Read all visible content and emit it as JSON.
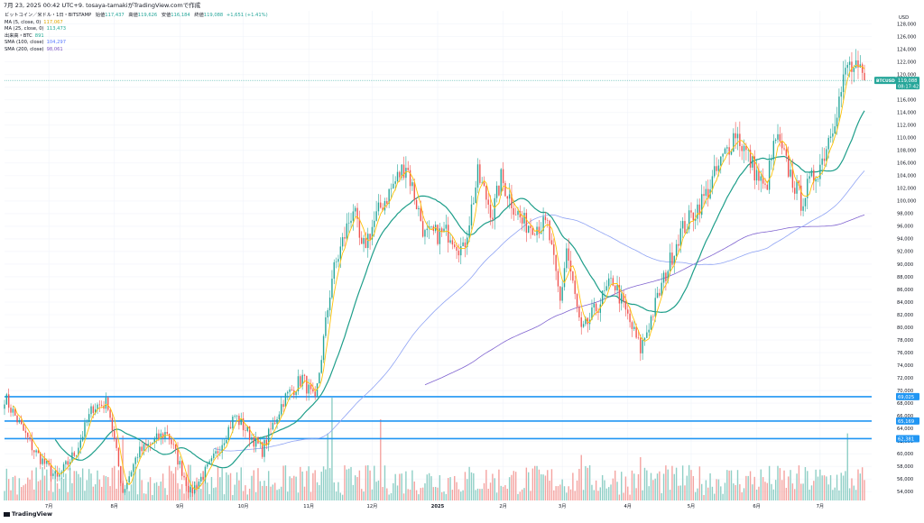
{
  "header": {
    "title": "7月 23, 2025 00:42 UTC+9. tosaya-tamakiがTradingView.comで作成"
  },
  "legend": {
    "symbol": "ビットコイン／米ドル・1日・BITSTAMP",
    "open_label": "始値",
    "open": "117,437",
    "high_label": "高値",
    "high": "119,626",
    "low_label": "安値",
    "low": "116,184",
    "close_label": "終値",
    "close": "119,088",
    "change": "+1,651 (+1.41%)",
    "indicators": [
      {
        "label": "MA (5, close, 0)",
        "value": "117,067",
        "color": "#ffc107"
      },
      {
        "label": "MA (25, close, 0)",
        "value": "113,473",
        "color": "#22ab94"
      },
      {
        "label": "出来高・BTC",
        "value": "891",
        "color": "#22ab94"
      },
      {
        "label": "SMA (100, close)",
        "value": "104,297",
        "color": "#5b7bff"
      },
      {
        "label": "SMA (200, close)",
        "value": "98,061",
        "color": "#7e57c2"
      }
    ]
  },
  "footer": {
    "logo": "TradingView"
  },
  "colors": {
    "up": "#26a69a",
    "down": "#ef5350",
    "up_vol": "#8fcfc6",
    "down_vol": "#f4a3a0",
    "hline": "#2196f3",
    "ma5": "#ffc107",
    "ma25": "#1e9e8a",
    "sma100": "#90a4f4",
    "sma200": "#8064d0",
    "price_badge": "#26a69a",
    "last_line": "#26a69a"
  },
  "chart_data": {
    "type": "candlestick",
    "title": "ビットコイン／米ドル・1日・BITSTAMP",
    "currency_label": "USD",
    "y_range": [
      52600,
      130100
    ],
    "y_ticks": [
      "54,000",
      "56,000",
      "58,000",
      "60,000",
      "62,000",
      "64,000",
      "66,000",
      "68,000",
      "70,000",
      "72,000",
      "74,000",
      "76,000",
      "78,000",
      "80,000",
      "82,000",
      "84,000",
      "86,000",
      "88,000",
      "90,000",
      "92,000",
      "94,000",
      "96,000",
      "98,000",
      "100,000",
      "102,000",
      "104,000",
      "106,000",
      "108,000",
      "110,000",
      "112,000",
      "114,000",
      "116,000",
      "118,000",
      "120,000",
      "122,000",
      "124,000",
      "126,000",
      "128,000"
    ],
    "x_labels": [
      {
        "label": "7月",
        "date": "2024-07-01"
      },
      {
        "label": "8月",
        "date": "2024-08-01"
      },
      {
        "label": "9月",
        "date": "2024-09-01"
      },
      {
        "label": "10月",
        "date": "2024-10-01"
      },
      {
        "label": "11月",
        "date": "2024-11-01"
      },
      {
        "label": "12月",
        "date": "2024-12-01"
      },
      {
        "label": "2025",
        "date": "2025-01-01"
      },
      {
        "label": "2月",
        "date": "2025-02-01"
      },
      {
        "label": "3月",
        "date": "2025-03-01"
      },
      {
        "label": "4月",
        "date": "2025-04-01"
      },
      {
        "label": "5月",
        "date": "2025-05-01"
      },
      {
        "label": "6月",
        "date": "2025-06-01"
      },
      {
        "label": "7月",
        "date": "2025-07-01"
      }
    ],
    "horizontal_levels": [
      {
        "value": 69025,
        "label": "69,025"
      },
      {
        "value": 65169,
        "label": "65,169"
      },
      {
        "value": 62381,
        "label": "62,381"
      }
    ],
    "last_price": {
      "value": 119088,
      "label": "119,088",
      "symbol": "BTCUSD",
      "countdown": "08:17:42"
    },
    "anchors": [
      [
        "2024-06-10",
        69000
      ],
      [
        "2024-06-24",
        60500
      ],
      [
        "2024-07-05",
        56000
      ],
      [
        "2024-07-14",
        60500
      ],
      [
        "2024-07-22",
        67500
      ],
      [
        "2024-07-29",
        68000
      ],
      [
        "2024-08-05",
        54000
      ],
      [
        "2024-08-12",
        60000
      ],
      [
        "2024-08-26",
        63500
      ],
      [
        "2024-09-06",
        53800
      ],
      [
        "2024-09-16",
        58500
      ],
      [
        "2024-09-27",
        66000
      ],
      [
        "2024-10-10",
        60500
      ],
      [
        "2024-10-20",
        68500
      ],
      [
        "2024-10-29",
        72000
      ],
      [
        "2024-11-04",
        68000
      ],
      [
        "2024-11-12",
        88000
      ],
      [
        "2024-11-22",
        99000
      ],
      [
        "2024-11-26",
        92000
      ],
      [
        "2024-12-05",
        99000
      ],
      [
        "2024-12-17",
        106000
      ],
      [
        "2024-12-26",
        94500
      ],
      [
        "2025-01-07",
        95000
      ],
      [
        "2025-01-13",
        92000
      ],
      [
        "2025-01-20",
        104000
      ],
      [
        "2025-01-27",
        98000
      ],
      [
        "2025-01-31",
        103500
      ],
      [
        "2025-02-10",
        96500
      ],
      [
        "2025-02-22",
        96000
      ],
      [
        "2025-02-28",
        84000
      ],
      [
        "2025-03-03",
        92500
      ],
      [
        "2025-03-10",
        79000
      ],
      [
        "2025-03-25",
        87500
      ],
      [
        "2025-04-07",
        76500
      ],
      [
        "2025-04-15",
        84500
      ],
      [
        "2025-04-25",
        94500
      ],
      [
        "2025-05-08",
        101000
      ],
      [
        "2025-05-22",
        111000
      ],
      [
        "2025-06-05",
        101500
      ],
      [
        "2025-06-10",
        110000
      ],
      [
        "2025-06-22",
        100000
      ],
      [
        "2025-07-02",
        106500
      ],
      [
        "2025-07-10",
        116000
      ],
      [
        "2025-07-14",
        121500
      ],
      [
        "2025-07-22",
        119088
      ]
    ],
    "volume_spikes": [
      [
        "2024-11-12",
        0.95
      ],
      [
        "2024-11-10",
        0.62
      ],
      [
        "2024-12-05",
        0.75
      ],
      [
        "2025-07-14",
        0.62
      ],
      [
        "2024-08-05",
        0.6
      ],
      [
        "2025-03-10",
        0.42
      ],
      [
        "2025-04-07",
        0.4
      ]
    ],
    "series": [
      {
        "name": "MA (5, close, 0)",
        "period": 5
      },
      {
        "name": "MA (25, close, 0)",
        "period": 25
      },
      {
        "name": "SMA (100, close)",
        "period": 100
      },
      {
        "name": "SMA (200, close)",
        "period": 200
      }
    ]
  }
}
